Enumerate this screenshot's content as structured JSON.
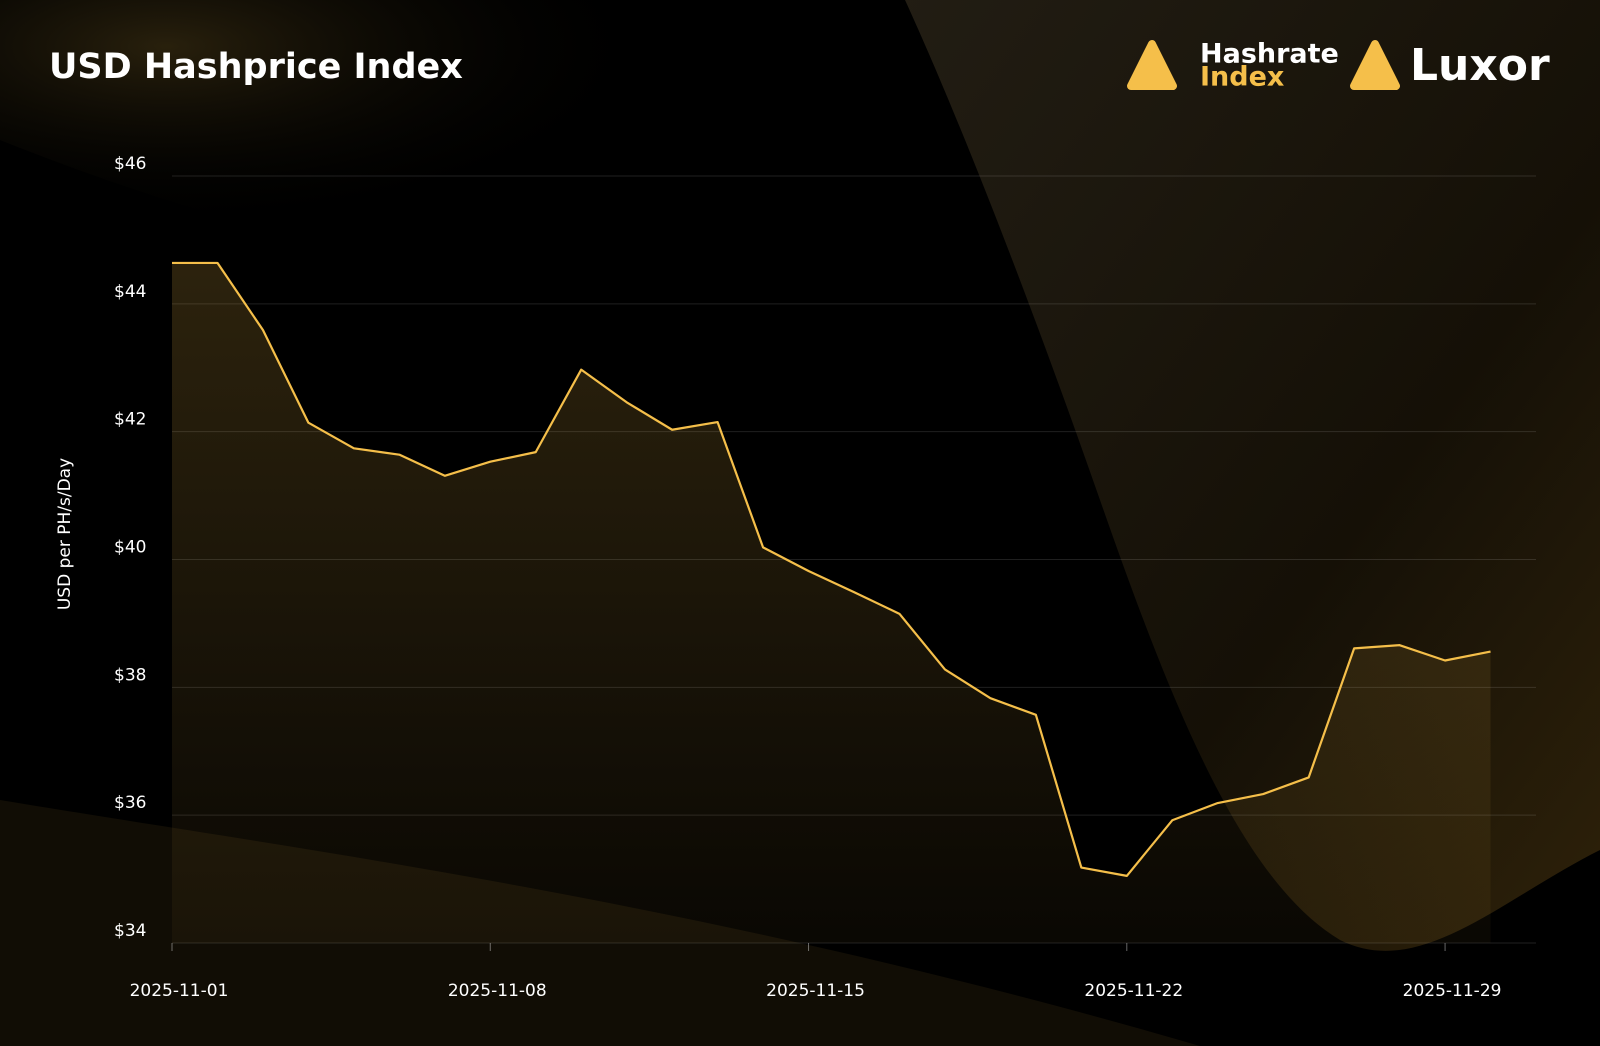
{
  "chart_data": {
    "type": "line",
    "title": "USD Hashprice Index",
    "logos": {
      "hashrate_top": "Hashrate",
      "hashrate_bottom": "Index",
      "luxor": "Luxor"
    },
    "ylabel": "USD per PH/s/Day",
    "x": [
      "2025-11-01",
      "2025-11-02",
      "2025-11-03",
      "2025-11-04",
      "2025-11-05",
      "2025-11-06",
      "2025-11-07",
      "2025-11-08",
      "2025-11-09",
      "2025-11-10",
      "2025-11-11",
      "2025-11-12",
      "2025-11-13",
      "2025-11-14",
      "2025-11-15",
      "2025-11-16",
      "2025-11-17",
      "2025-11-18",
      "2025-11-19",
      "2025-11-20",
      "2025-11-21",
      "2025-11-22",
      "2025-11-23",
      "2025-11-24",
      "2025-11-25",
      "2025-11-26",
      "2025-11-27",
      "2025-11-28",
      "2025-11-29",
      "2025-11-30"
    ],
    "series": [
      {
        "name": "USD Hashprice",
        "color": "#f5bf4a",
        "values": [
          44.64,
          44.64,
          43.59,
          42.14,
          41.74,
          41.64,
          41.31,
          41.53,
          41.68,
          42.97,
          42.46,
          42.03,
          42.15,
          40.19,
          39.82,
          39.49,
          39.15,
          38.28,
          37.83,
          37.57,
          35.18,
          35.05,
          35.92,
          36.19,
          36.33,
          36.59,
          38.61,
          38.66,
          38.42,
          38.56
        ]
      }
    ],
    "xlim": [
      "2025-11-01",
      "2025-12-01"
    ],
    "xticks": [
      "2025-11-01",
      "2025-11-08",
      "2025-11-15",
      "2025-11-22",
      "2025-11-29"
    ],
    "ylim": [
      34,
      46
    ],
    "yticks": [
      {
        "value": 34,
        "label": "$34"
      },
      {
        "value": 36,
        "label": "$36"
      },
      {
        "value": 38,
        "label": "$38"
      },
      {
        "value": 40,
        "label": "$40"
      },
      {
        "value": 42,
        "label": "$42"
      },
      {
        "value": 44,
        "label": "$44"
      },
      {
        "value": 46,
        "label": "$46"
      }
    ],
    "grid": true
  }
}
